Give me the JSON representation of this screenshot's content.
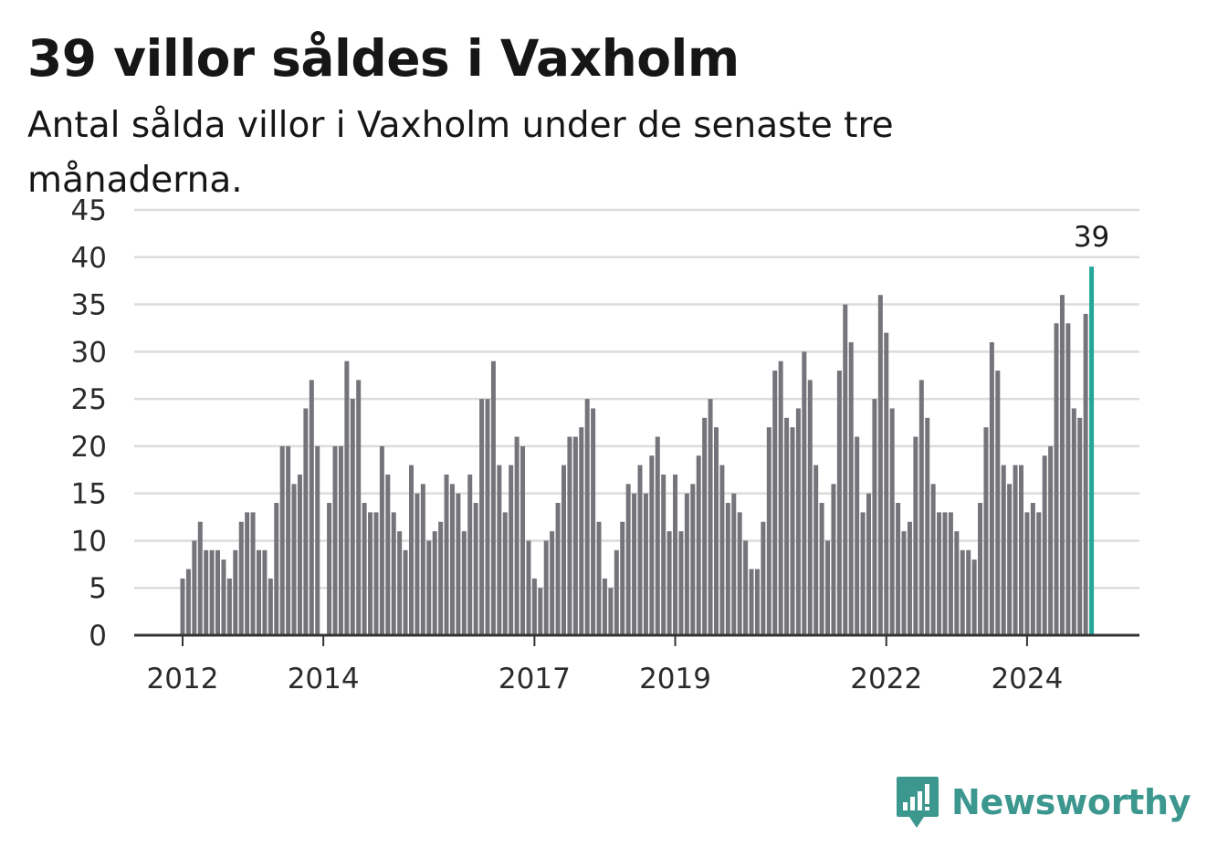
{
  "header": {
    "title": "39 villor såldes i Vaxholm",
    "subtitle": "Antal sålda villor i Vaxholm under de senaste tre månaderna."
  },
  "brand": {
    "name": "Newsworthy",
    "color": "#3c978f"
  },
  "colors": {
    "bar": "#75747a",
    "highlight": "#24a699",
    "grid": "#dcdcdc",
    "axis": "#333333"
  },
  "chart_data": {
    "type": "bar",
    "title": "39 villor såldes i Vaxholm",
    "subtitle": "Antal sålda villor i Vaxholm under de senaste tre månaderna.",
    "ylim": [
      0,
      45
    ],
    "yticks": [
      0,
      5,
      10,
      15,
      20,
      25,
      30,
      35,
      40,
      45
    ],
    "grid": true,
    "xticks": [
      {
        "label": "2012",
        "index": 0
      },
      {
        "label": "2014",
        "index": 24
      },
      {
        "label": "2017",
        "index": 60
      },
      {
        "label": "2019",
        "index": 84
      },
      {
        "label": "2022",
        "index": 120
      },
      {
        "label": "2024",
        "index": 144
      }
    ],
    "values": [
      6,
      7,
      10,
      12,
      9,
      9,
      9,
      8,
      6,
      9,
      12,
      13,
      13,
      9,
      9,
      6,
      14,
      20,
      20,
      16,
      17,
      24,
      27,
      20,
      0,
      14,
      20,
      20,
      29,
      25,
      27,
      14,
      13,
      13,
      20,
      17,
      13,
      11,
      9,
      18,
      15,
      16,
      10,
      11,
      12,
      17,
      16,
      15,
      11,
      17,
      14,
      25,
      25,
      29,
      18,
      13,
      18,
      21,
      20,
      10,
      6,
      5,
      10,
      11,
      14,
      18,
      21,
      21,
      22,
      25,
      24,
      12,
      6,
      5,
      9,
      12,
      16,
      15,
      18,
      15,
      19,
      21,
      17,
      11,
      17,
      11,
      15,
      16,
      19,
      23,
      25,
      22,
      18,
      14,
      15,
      13,
      10,
      7,
      7,
      12,
      22,
      28,
      29,
      23,
      22,
      24,
      30,
      27,
      18,
      14,
      10,
      16,
      28,
      35,
      31,
      21,
      13,
      15,
      25,
      36,
      32,
      24,
      14,
      11,
      12,
      21,
      27,
      23,
      16,
      13,
      13,
      13,
      11,
      9,
      9,
      8,
      14,
      22,
      31,
      28,
      18,
      16,
      18,
      18,
      13,
      14,
      13,
      19,
      20,
      33,
      36,
      33,
      24,
      23,
      34,
      39
    ],
    "highlight_index": 155,
    "highlight_label": "39"
  }
}
